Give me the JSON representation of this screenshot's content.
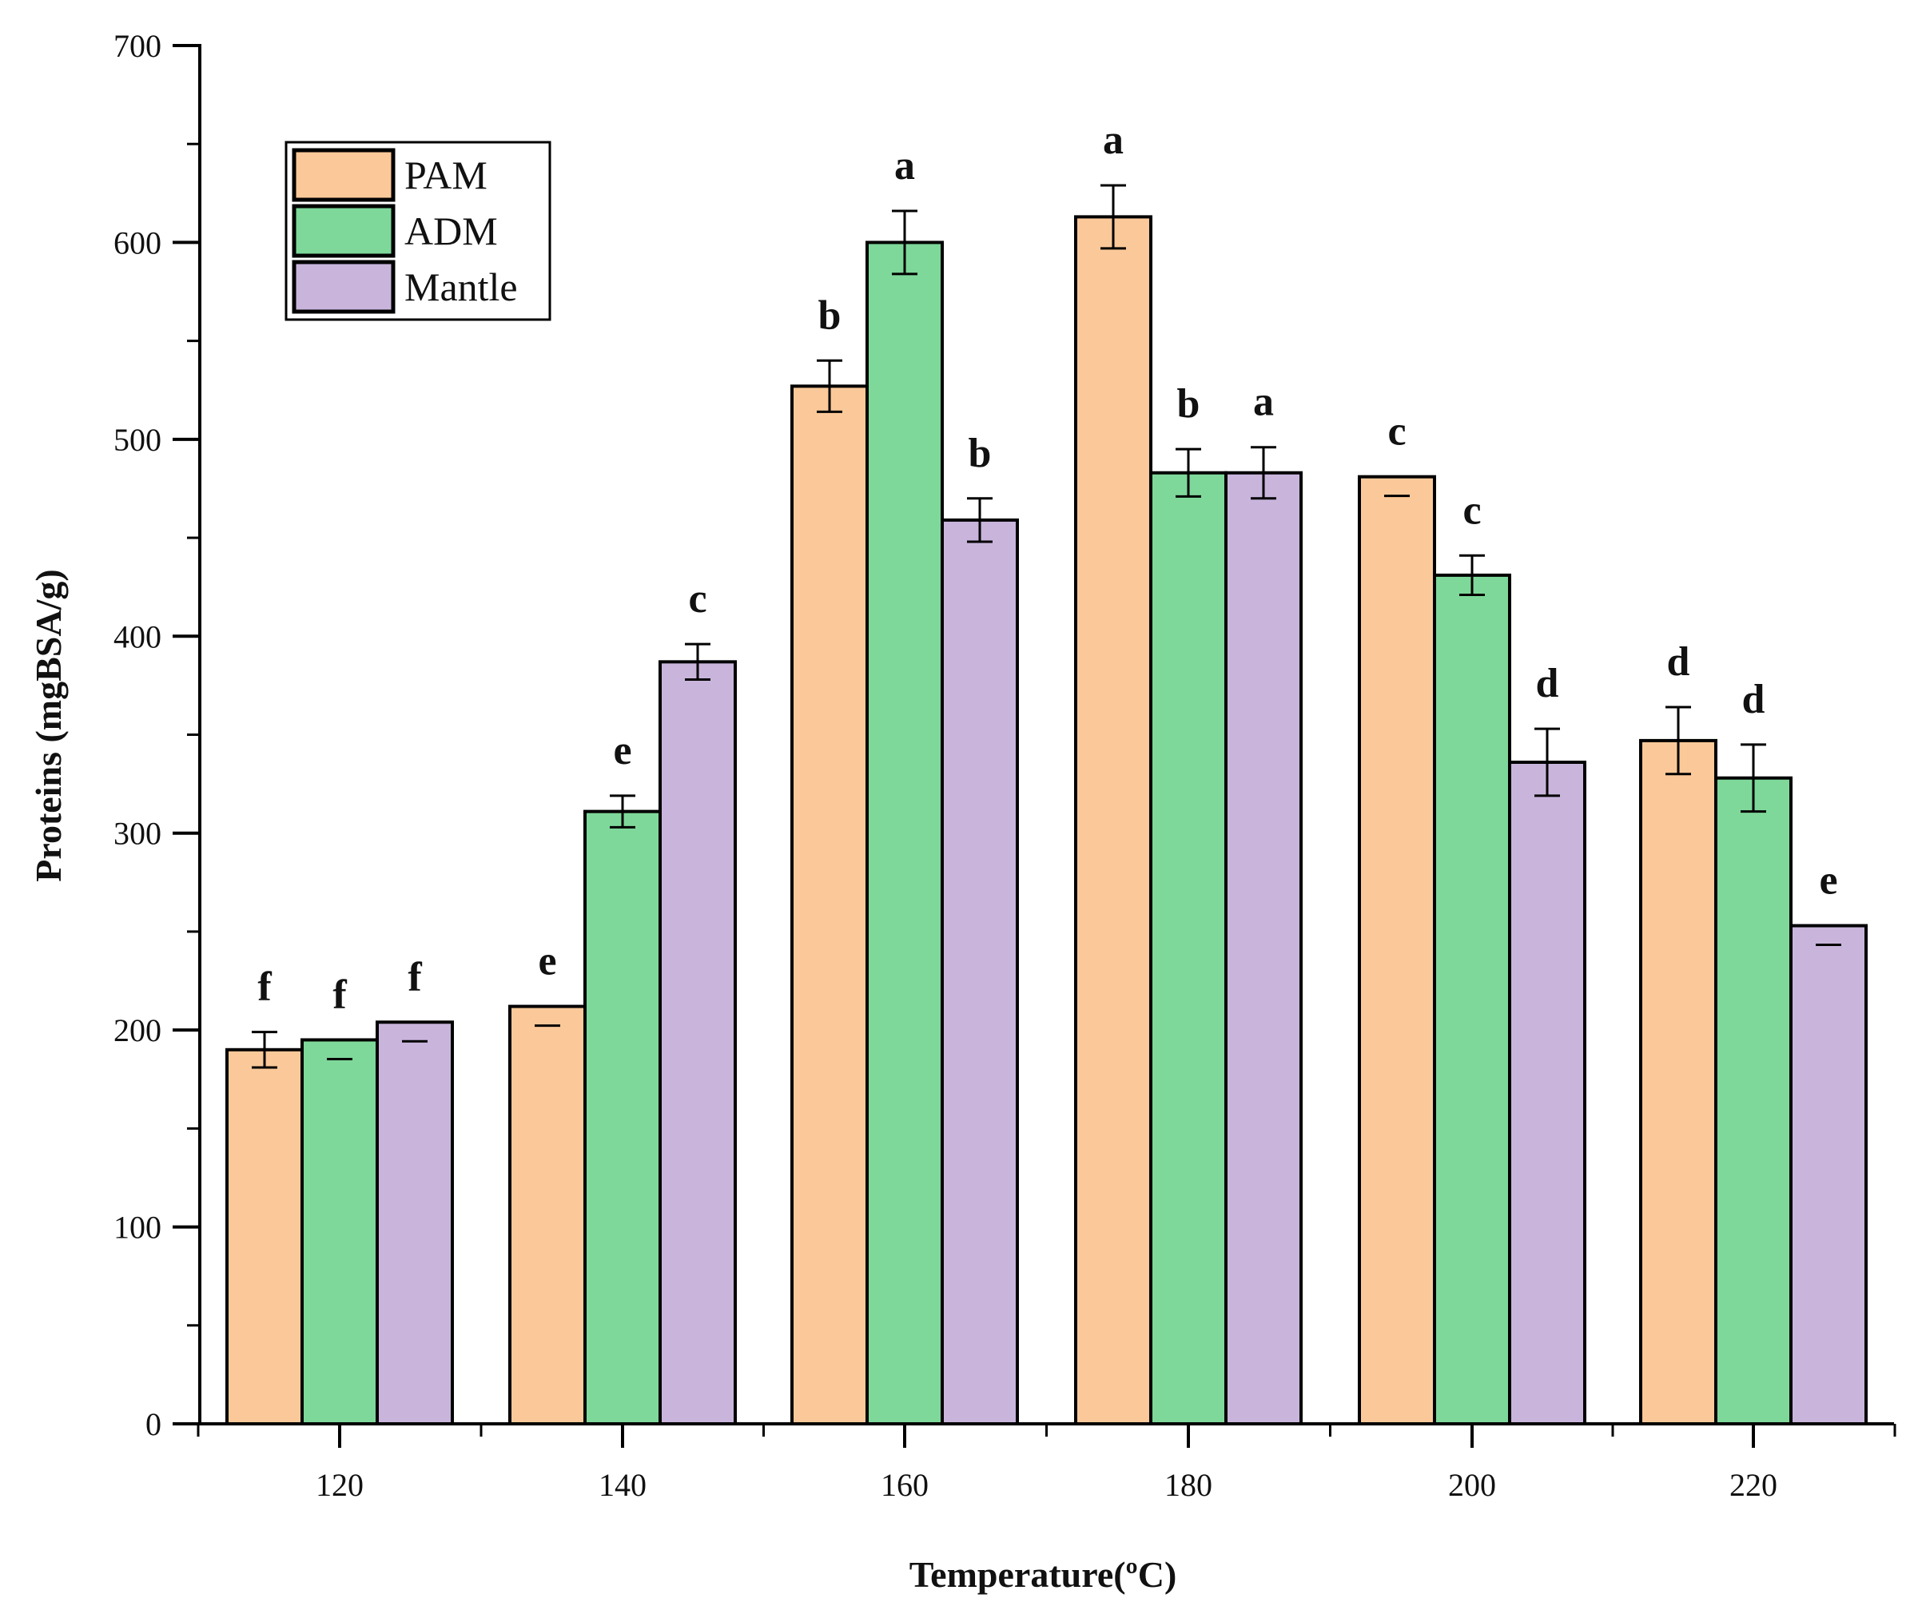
{
  "chart_data": {
    "type": "bar",
    "title": "",
    "xlabel": "Temperature(ºC)",
    "ylabel": "Proteins (mgBSA/g)",
    "ylim": [
      0,
      700
    ],
    "yticks": [
      0,
      100,
      200,
      300,
      400,
      500,
      600,
      700
    ],
    "categories": [
      "120",
      "140",
      "160",
      "180",
      "200",
      "220"
    ],
    "legend_position": "top-left",
    "series": [
      {
        "name": "PAM",
        "color": "#FBC999",
        "values": [
          190,
          212,
          527,
          613,
          481,
          347
        ],
        "errors": [
          9,
          0,
          13,
          16,
          0,
          17
        ],
        "labels": [
          "f",
          "e",
          "b",
          "a",
          "c",
          "d"
        ]
      },
      {
        "name": "ADM",
        "color": "#7ED89A",
        "values": [
          195,
          311,
          600,
          483,
          431,
          328
        ],
        "errors": [
          0,
          8,
          16,
          12,
          10,
          17
        ],
        "labels": [
          "f",
          "e",
          "a",
          "b",
          "c",
          "d"
        ]
      },
      {
        "name": "Mantle",
        "color": "#C9B5DC",
        "values": [
          204,
          387,
          459,
          483,
          336,
          253
        ],
        "errors": [
          0,
          9,
          11,
          13,
          17,
          0
        ],
        "labels": [
          "f",
          "c",
          "b",
          "a",
          "d",
          "e"
        ]
      }
    ]
  }
}
